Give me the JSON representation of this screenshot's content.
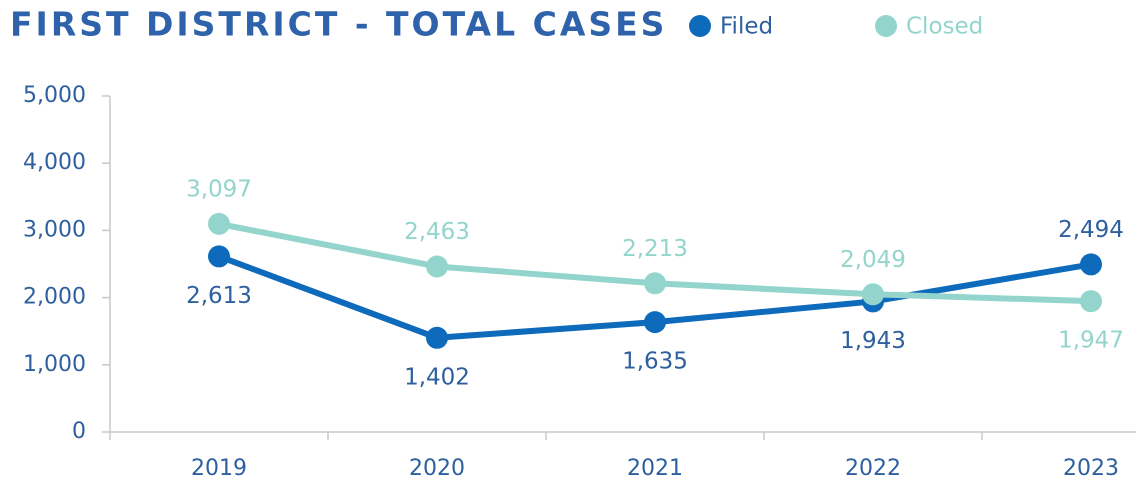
{
  "chart_data": {
    "type": "line",
    "title": "FIRST DISTRICT - TOTAL CASES",
    "categories": [
      "2019",
      "2020",
      "2021",
      "2022",
      "2023"
    ],
    "series": [
      {
        "name": "Filed",
        "color": "#0e6abb",
        "values": [
          2613,
          1402,
          1635,
          1943,
          2494
        ],
        "value_labels": [
          "2,613",
          "1,402",
          "1,635",
          "1,943",
          "2,494"
        ]
      },
      {
        "name": "Closed",
        "color": "#93d5cc",
        "values": [
          3097,
          2463,
          2213,
          2049,
          1947
        ],
        "value_labels": [
          "3,097",
          "2,463",
          "2,213",
          "2,049",
          "1,947"
        ]
      }
    ],
    "ylim": [
      0,
      5000
    ],
    "yticks": [
      0,
      {
        "value": 1000,
        "label": "1,000"
      },
      {
        "value": 2000,
        "label": "2,000"
      },
      {
        "value": 3000,
        "label": "3,000"
      },
      {
        "value": 4000,
        "label": "4,000"
      },
      {
        "value": 5000,
        "label": "5,000"
      }
    ],
    "legend": "top"
  }
}
